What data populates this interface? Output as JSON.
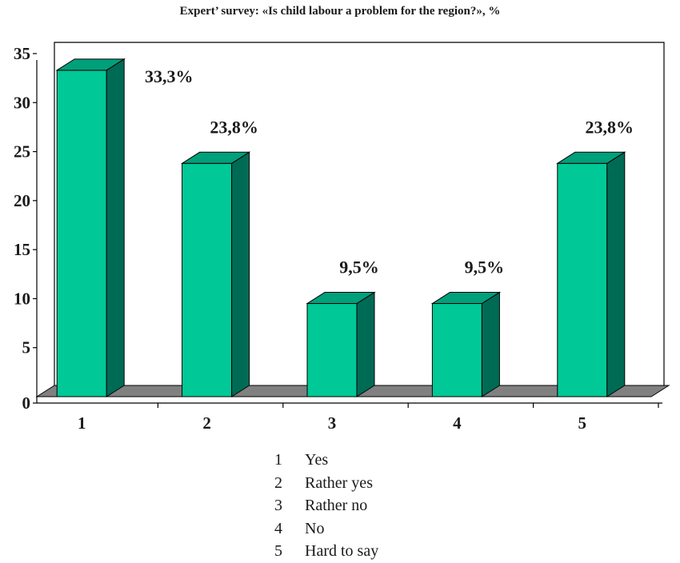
{
  "chart_data": {
    "type": "bar",
    "title": "Expert’ survey: «Is child labour a problem for the region?», %",
    "categories": [
      "1",
      "2",
      "3",
      "4",
      "5"
    ],
    "values": [
      33.3,
      23.8,
      9.5,
      9.5,
      23.8
    ],
    "data_labels": [
      "33,3%",
      "23,8%",
      "9,5%",
      "9,5%",
      "23,8%"
    ],
    "yticks": [
      "0",
      "5",
      "10",
      "15",
      "20",
      "25",
      "30",
      "35"
    ],
    "ylim": [
      0,
      35
    ],
    "xlabel": "",
    "ylabel": "",
    "grid": false,
    "style": "3d-bar",
    "colors": {
      "bar_front": "#00c896",
      "bar_top": "#00a07a",
      "bar_side": "#006b55",
      "floor": "#808080"
    },
    "legend": [
      {
        "key": "1",
        "label": "Yes"
      },
      {
        "key": "2",
        "label": "Rather yes"
      },
      {
        "key": "3",
        "label": "Rather no"
      },
      {
        "key": "4",
        "label": "No"
      },
      {
        "key": "5",
        "label": "Hard to say"
      }
    ]
  }
}
